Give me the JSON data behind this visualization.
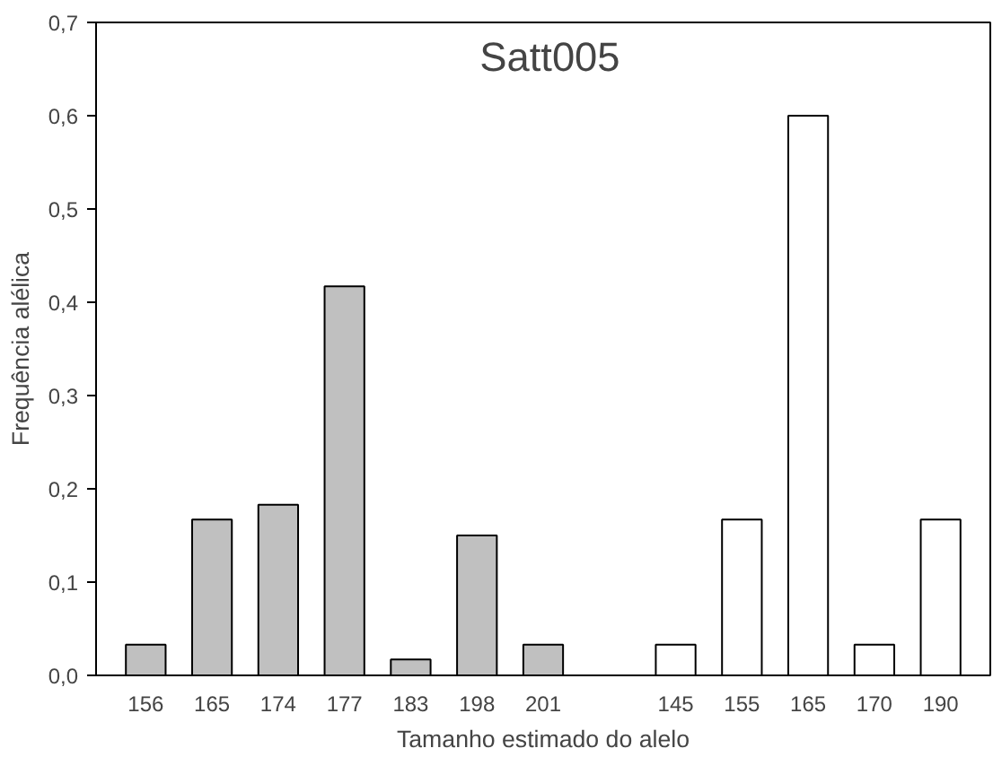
{
  "chart_data": {
    "type": "bar",
    "title": "Satt005",
    "xlabel": "Tamanho estimado do alelo",
    "ylabel": "Frequência alélica",
    "categories": [
      "156",
      "165",
      "174",
      "177",
      "183",
      "198",
      "201",
      null,
      "145",
      "155",
      "165",
      "170",
      "190"
    ],
    "values": [
      0.033,
      0.167,
      0.183,
      0.417,
      0.017,
      0.15,
      0.033,
      null,
      0.033,
      0.167,
      0.6,
      0.033,
      0.167
    ],
    "colors": [
      "#c0c0c0",
      "#c0c0c0",
      "#c0c0c0",
      "#c0c0c0",
      "#c0c0c0",
      "#c0c0c0",
      "#c0c0c0",
      "#c0c0c0",
      "#ffffff",
      "#ffffff",
      "#ffffff",
      "#ffffff",
      "#ffffff"
    ],
    "ylim": [
      0,
      0.7
    ],
    "yticks": [
      {
        "value": 0,
        "label": "0,0"
      },
      {
        "value": 0.1,
        "label": "0,1"
      },
      {
        "value": 0.2,
        "label": "0,2"
      },
      {
        "value": 0.3,
        "label": "0,3"
      },
      {
        "value": 0.4,
        "label": "0,4"
      },
      {
        "value": 0.5,
        "label": "0,5"
      },
      {
        "value": 0.6,
        "label": "0,6"
      },
      {
        "value": 0.7,
        "label": "0,7"
      }
    ],
    "grid": false
  }
}
